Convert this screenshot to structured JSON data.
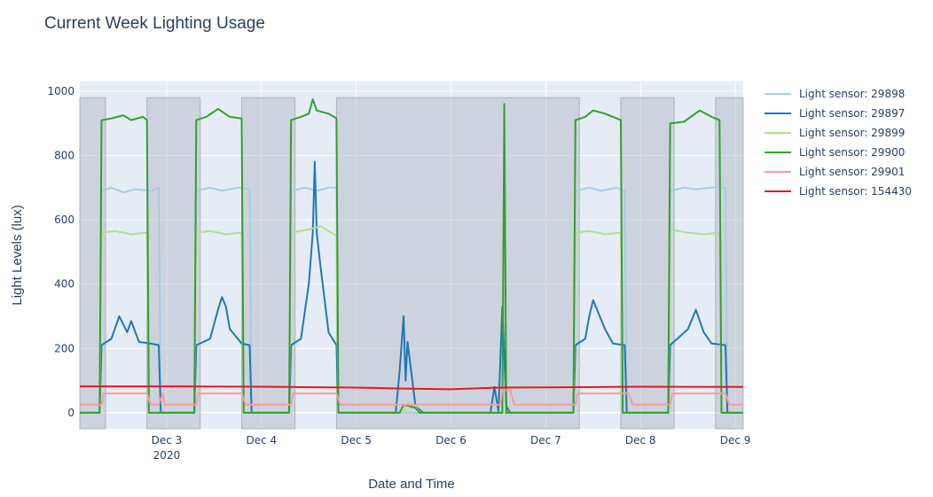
{
  "chart_data": {
    "type": "line",
    "title": "Current Week Lighting Usage",
    "xlabel": "Date and Time",
    "ylabel": "Light Levels (lux)",
    "ylim": [
      -50,
      1030
    ],
    "xlim": [
      "2020-12-02 02:00",
      "2020-12-09 02:00"
    ],
    "y_ticks": [
      0,
      200,
      400,
      600,
      800,
      1000
    ],
    "x_ticks": [
      {
        "t": "2020-12-03 00:00",
        "label": "Dec 3",
        "sublabel": "2020"
      },
      {
        "t": "2020-12-04 00:00",
        "label": "Dec 4"
      },
      {
        "t": "2020-12-05 00:00",
        "label": "Dec 5"
      },
      {
        "t": "2020-12-06 00:00",
        "label": "Dec 6"
      },
      {
        "t": "2020-12-07 00:00",
        "label": "Dec 7"
      },
      {
        "t": "2020-12-08 00:00",
        "label": "Dec 8"
      },
      {
        "t": "2020-12-09 00:00",
        "label": "Dec 9"
      }
    ],
    "grid": true,
    "legend_position": "right",
    "plot_bgcolor": "#e5ecf6",
    "shaded_periods": [
      [
        "2020-12-02 02:00",
        "2020-12-02 08:30"
      ],
      [
        "2020-12-02 19:00",
        "2020-12-03 08:30"
      ],
      [
        "2020-12-03 19:00",
        "2020-12-04 08:30"
      ],
      [
        "2020-12-04 19:00",
        "2020-12-07 08:30"
      ],
      [
        "2020-12-07 19:00",
        "2020-12-08 08:30"
      ],
      [
        "2020-12-08 19:00",
        "2020-12-09 02:00"
      ]
    ],
    "series": [
      {
        "name": "Light sensor: 29898",
        "color": "#a6cee3",
        "points": [
          [
            "2020-12-02 02:00",
            0
          ],
          [
            "2020-12-02 07:00",
            0
          ],
          [
            "2020-12-02 07:30",
            690
          ],
          [
            "2020-12-02 10:00",
            700
          ],
          [
            "2020-12-02 13:00",
            685
          ],
          [
            "2020-12-02 16:00",
            695
          ],
          [
            "2020-12-02 20:00",
            690
          ],
          [
            "2020-12-02 22:00",
            700
          ],
          [
            "2020-12-02 22:30",
            0
          ],
          [
            "2020-12-03 07:00",
            0
          ],
          [
            "2020-12-03 07:30",
            690
          ],
          [
            "2020-12-03 11:00",
            700
          ],
          [
            "2020-12-03 14:00",
            690
          ],
          [
            "2020-12-03 18:00",
            700
          ],
          [
            "2020-12-03 21:00",
            695
          ],
          [
            "2020-12-03 21:30",
            0
          ],
          [
            "2020-12-04 07:00",
            0
          ],
          [
            "2020-12-04 07:30",
            690
          ],
          [
            "2020-12-04 11:00",
            700
          ],
          [
            "2020-12-04 14:00",
            690
          ],
          [
            "2020-12-04 17:00",
            700
          ],
          [
            "2020-12-04 19:00",
            700
          ],
          [
            "2020-12-04 19:30",
            0
          ],
          [
            "2020-12-07 07:00",
            0
          ],
          [
            "2020-12-07 07:30",
            690
          ],
          [
            "2020-12-07 11:00",
            700
          ],
          [
            "2020-12-07 14:00",
            690
          ],
          [
            "2020-12-07 18:00",
            700
          ],
          [
            "2020-12-07 20:00",
            690
          ],
          [
            "2020-12-07 20:30",
            0
          ],
          [
            "2020-12-08 07:00",
            0
          ],
          [
            "2020-12-08 07:30",
            690
          ],
          [
            "2020-12-08 11:00",
            700
          ],
          [
            "2020-12-08 14:00",
            695
          ],
          [
            "2020-12-08 18:00",
            700
          ],
          [
            "2020-12-08 21:30",
            700
          ],
          [
            "2020-12-08 22:00",
            0
          ],
          [
            "2020-12-09 02:00",
            0
          ]
        ]
      },
      {
        "name": "Light sensor: 29897",
        "color": "#1f78b4",
        "points": [
          [
            "2020-12-02 02:00",
            0
          ],
          [
            "2020-12-02 07:00",
            0
          ],
          [
            "2020-12-02 07:30",
            210
          ],
          [
            "2020-12-02 10:00",
            230
          ],
          [
            "2020-12-02 12:00",
            300
          ],
          [
            "2020-12-02 14:00",
            250
          ],
          [
            "2020-12-02 15:00",
            285
          ],
          [
            "2020-12-02 17:00",
            220
          ],
          [
            "2020-12-02 20:00",
            215
          ],
          [
            "2020-12-02 22:00",
            210
          ],
          [
            "2020-12-02 22:30",
            0
          ],
          [
            "2020-12-03 07:00",
            0
          ],
          [
            "2020-12-03 07:30",
            210
          ],
          [
            "2020-12-03 11:00",
            230
          ],
          [
            "2020-12-03 13:00",
            320
          ],
          [
            "2020-12-03 14:00",
            360
          ],
          [
            "2020-12-03 15:00",
            330
          ],
          [
            "2020-12-03 16:00",
            260
          ],
          [
            "2020-12-03 19:00",
            215
          ],
          [
            "2020-12-03 21:00",
            210
          ],
          [
            "2020-12-03 21:30",
            0
          ],
          [
            "2020-12-04 07:00",
            0
          ],
          [
            "2020-12-04 07:30",
            210
          ],
          [
            "2020-12-04 10:00",
            230
          ],
          [
            "2020-12-04 12:00",
            400
          ],
          [
            "2020-12-04 13:00",
            560
          ],
          [
            "2020-12-04 13:30",
            780
          ],
          [
            "2020-12-04 14:00",
            560
          ],
          [
            "2020-12-04 15:00",
            450
          ],
          [
            "2020-12-04 17:00",
            250
          ],
          [
            "2020-12-04 19:00",
            210
          ],
          [
            "2020-12-04 19:30",
            0
          ],
          [
            "2020-12-05 10:00",
            0
          ],
          [
            "2020-12-05 11:00",
            130
          ],
          [
            "2020-12-05 12:00",
            300
          ],
          [
            "2020-12-05 12:30",
            100
          ],
          [
            "2020-12-05 13:00",
            220
          ],
          [
            "2020-12-05 14:00",
            120
          ],
          [
            "2020-12-05 15:00",
            20
          ],
          [
            "2020-12-05 17:00",
            0
          ],
          [
            "2020-12-06 10:00",
            0
          ],
          [
            "2020-12-06 11:00",
            80
          ],
          [
            "2020-12-06 12:00",
            5
          ],
          [
            "2020-12-06 13:00",
            330
          ],
          [
            "2020-12-06 14:00",
            20
          ],
          [
            "2020-12-06 15:00",
            0
          ],
          [
            "2020-12-07 07:00",
            0
          ],
          [
            "2020-12-07 07:30",
            210
          ],
          [
            "2020-12-07 10:00",
            230
          ],
          [
            "2020-12-07 11:00",
            300
          ],
          [
            "2020-12-07 12:00",
            350
          ],
          [
            "2020-12-07 13:00",
            320
          ],
          [
            "2020-12-07 15:00",
            260
          ],
          [
            "2020-12-07 17:00",
            215
          ],
          [
            "2020-12-07 20:00",
            210
          ],
          [
            "2020-12-07 20:30",
            0
          ],
          [
            "2020-12-08 07:00",
            0
          ],
          [
            "2020-12-08 07:30",
            210
          ],
          [
            "2020-12-08 12:00",
            260
          ],
          [
            "2020-12-08 14:00",
            320
          ],
          [
            "2020-12-08 16:00",
            250
          ],
          [
            "2020-12-08 18:00",
            215
          ],
          [
            "2020-12-08 21:30",
            210
          ],
          [
            "2020-12-08 22:00",
            0
          ],
          [
            "2020-12-09 02:00",
            0
          ]
        ]
      },
      {
        "name": "Light sensor: 29899",
        "color": "#b2df8a",
        "points": [
          [
            "2020-12-02 02:00",
            0
          ],
          [
            "2020-12-02 07:00",
            0
          ],
          [
            "2020-12-02 07:30",
            560
          ],
          [
            "2020-12-02 11:00",
            565
          ],
          [
            "2020-12-02 15:00",
            555
          ],
          [
            "2020-12-02 19:00",
            560
          ],
          [
            "2020-12-02 19:30",
            0
          ],
          [
            "2020-12-03 07:00",
            0
          ],
          [
            "2020-12-03 07:30",
            560
          ],
          [
            "2020-12-03 11:00",
            565
          ],
          [
            "2020-12-03 15:00",
            555
          ],
          [
            "2020-12-03 19:00",
            560
          ],
          [
            "2020-12-03 19:30",
            0
          ],
          [
            "2020-12-04 07:00",
            0
          ],
          [
            "2020-12-04 07:30",
            560
          ],
          [
            "2020-12-04 12:00",
            570
          ],
          [
            "2020-12-04 15:00",
            580
          ],
          [
            "2020-12-04 19:00",
            550
          ],
          [
            "2020-12-04 19:30",
            0
          ],
          [
            "2020-12-05 12:00",
            0
          ],
          [
            "2020-12-05 13:00",
            30
          ],
          [
            "2020-12-05 15:00",
            20
          ],
          [
            "2020-12-05 16:00",
            0
          ],
          [
            "2020-12-07 07:00",
            0
          ],
          [
            "2020-12-07 07:30",
            560
          ],
          [
            "2020-12-07 11:00",
            565
          ],
          [
            "2020-12-07 15:00",
            555
          ],
          [
            "2020-12-07 19:00",
            560
          ],
          [
            "2020-12-07 19:30",
            0
          ],
          [
            "2020-12-08 07:00",
            0
          ],
          [
            "2020-12-08 07:30",
            570
          ],
          [
            "2020-12-08 12:00",
            560
          ],
          [
            "2020-12-08 16:00",
            555
          ],
          [
            "2020-12-08 20:00",
            560
          ],
          [
            "2020-12-08 20:30",
            0
          ],
          [
            "2020-12-09 02:00",
            0
          ]
        ]
      },
      {
        "name": "Light sensor: 29900",
        "color": "#33a02c",
        "points": [
          [
            "2020-12-02 02:00",
            0
          ],
          [
            "2020-12-02 07:00",
            0
          ],
          [
            "2020-12-02 07:30",
            910
          ],
          [
            "2020-12-02 10:00",
            915
          ],
          [
            "2020-12-02 13:00",
            925
          ],
          [
            "2020-12-02 15:00",
            910
          ],
          [
            "2020-12-02 18:00",
            920
          ],
          [
            "2020-12-02 19:00",
            910
          ],
          [
            "2020-12-02 19:30",
            0
          ],
          [
            "2020-12-03 07:00",
            0
          ],
          [
            "2020-12-03 07:30",
            910
          ],
          [
            "2020-12-03 10:00",
            920
          ],
          [
            "2020-12-03 13:00",
            945
          ],
          [
            "2020-12-03 16:00",
            920
          ],
          [
            "2020-12-03 19:00",
            915
          ],
          [
            "2020-12-03 19:30",
            0
          ],
          [
            "2020-12-04 07:00",
            0
          ],
          [
            "2020-12-04 07:30",
            910
          ],
          [
            "2020-12-04 10:00",
            920
          ],
          [
            "2020-12-04 12:00",
            930
          ],
          [
            "2020-12-04 13:00",
            975
          ],
          [
            "2020-12-04 14:00",
            940
          ],
          [
            "2020-12-04 17:00",
            930
          ],
          [
            "2020-12-04 19:00",
            915
          ],
          [
            "2020-12-04 19:30",
            0
          ],
          [
            "2020-12-05 11:00",
            0
          ],
          [
            "2020-12-05 12:00",
            25
          ],
          [
            "2020-12-05 15:00",
            15
          ],
          [
            "2020-12-05 16:00",
            0
          ],
          [
            "2020-12-06 13:00",
            0
          ],
          [
            "2020-12-06 13:30",
            960
          ],
          [
            "2020-12-06 14:00",
            0
          ],
          [
            "2020-12-07 07:00",
            0
          ],
          [
            "2020-12-07 07:30",
            910
          ],
          [
            "2020-12-07 10:00",
            920
          ],
          [
            "2020-12-07 12:00",
            940
          ],
          [
            "2020-12-07 15:00",
            930
          ],
          [
            "2020-12-07 19:00",
            910
          ],
          [
            "2020-12-07 19:30",
            0
          ],
          [
            "2020-12-08 07:00",
            0
          ],
          [
            "2020-12-08 07:30",
            900
          ],
          [
            "2020-12-08 11:00",
            905
          ],
          [
            "2020-12-08 15:00",
            940
          ],
          [
            "2020-12-08 18:00",
            920
          ],
          [
            "2020-12-08 20:00",
            910
          ],
          [
            "2020-12-08 20:30",
            0
          ],
          [
            "2020-12-09 02:00",
            0
          ]
        ]
      },
      {
        "name": "Light sensor: 29901",
        "color": "#fb9a99",
        "points": [
          [
            "2020-12-02 02:00",
            25
          ],
          [
            "2020-12-02 07:30",
            25
          ],
          [
            "2020-12-02 08:00",
            60
          ],
          [
            "2020-12-02 19:00",
            60
          ],
          [
            "2020-12-02 20:00",
            25
          ],
          [
            "2020-12-02 22:00",
            25
          ],
          [
            "2020-12-02 23:00",
            60
          ],
          [
            "2020-12-02 23:30",
            25
          ],
          [
            "2020-12-03 07:30",
            25
          ],
          [
            "2020-12-03 08:00",
            60
          ],
          [
            "2020-12-03 19:00",
            60
          ],
          [
            "2020-12-03 20:00",
            25
          ],
          [
            "2020-12-04 07:30",
            25
          ],
          [
            "2020-12-04 08:00",
            60
          ],
          [
            "2020-12-04 19:00",
            60
          ],
          [
            "2020-12-04 20:00",
            25
          ],
          [
            "2020-12-06 12:30",
            25
          ],
          [
            "2020-12-06 13:00",
            70
          ],
          [
            "2020-12-06 15:00",
            70
          ],
          [
            "2020-12-06 16:00",
            25
          ],
          [
            "2020-12-07 07:30",
            25
          ],
          [
            "2020-12-07 08:00",
            60
          ],
          [
            "2020-12-07 21:00",
            60
          ],
          [
            "2020-12-07 22:00",
            25
          ],
          [
            "2020-12-08 07:30",
            25
          ],
          [
            "2020-12-08 08:00",
            60
          ],
          [
            "2020-12-08 21:30",
            60
          ],
          [
            "2020-12-08 22:30",
            25
          ],
          [
            "2020-12-09 02:00",
            25
          ]
        ]
      },
      {
        "name": "Light sensor: 154430",
        "color": "#e31a1c",
        "points": [
          [
            "2020-12-02 02:00",
            82
          ],
          [
            "2020-12-03 00:00",
            82
          ],
          [
            "2020-12-04 00:00",
            81
          ],
          [
            "2020-12-05 00:00",
            78
          ],
          [
            "2020-12-05 12:00",
            75
          ],
          [
            "2020-12-06 00:00",
            73
          ],
          [
            "2020-12-06 12:00",
            78
          ],
          [
            "2020-12-07 00:00",
            79
          ],
          [
            "2020-12-08 00:00",
            81
          ],
          [
            "2020-12-09 02:00",
            80
          ]
        ]
      }
    ]
  }
}
